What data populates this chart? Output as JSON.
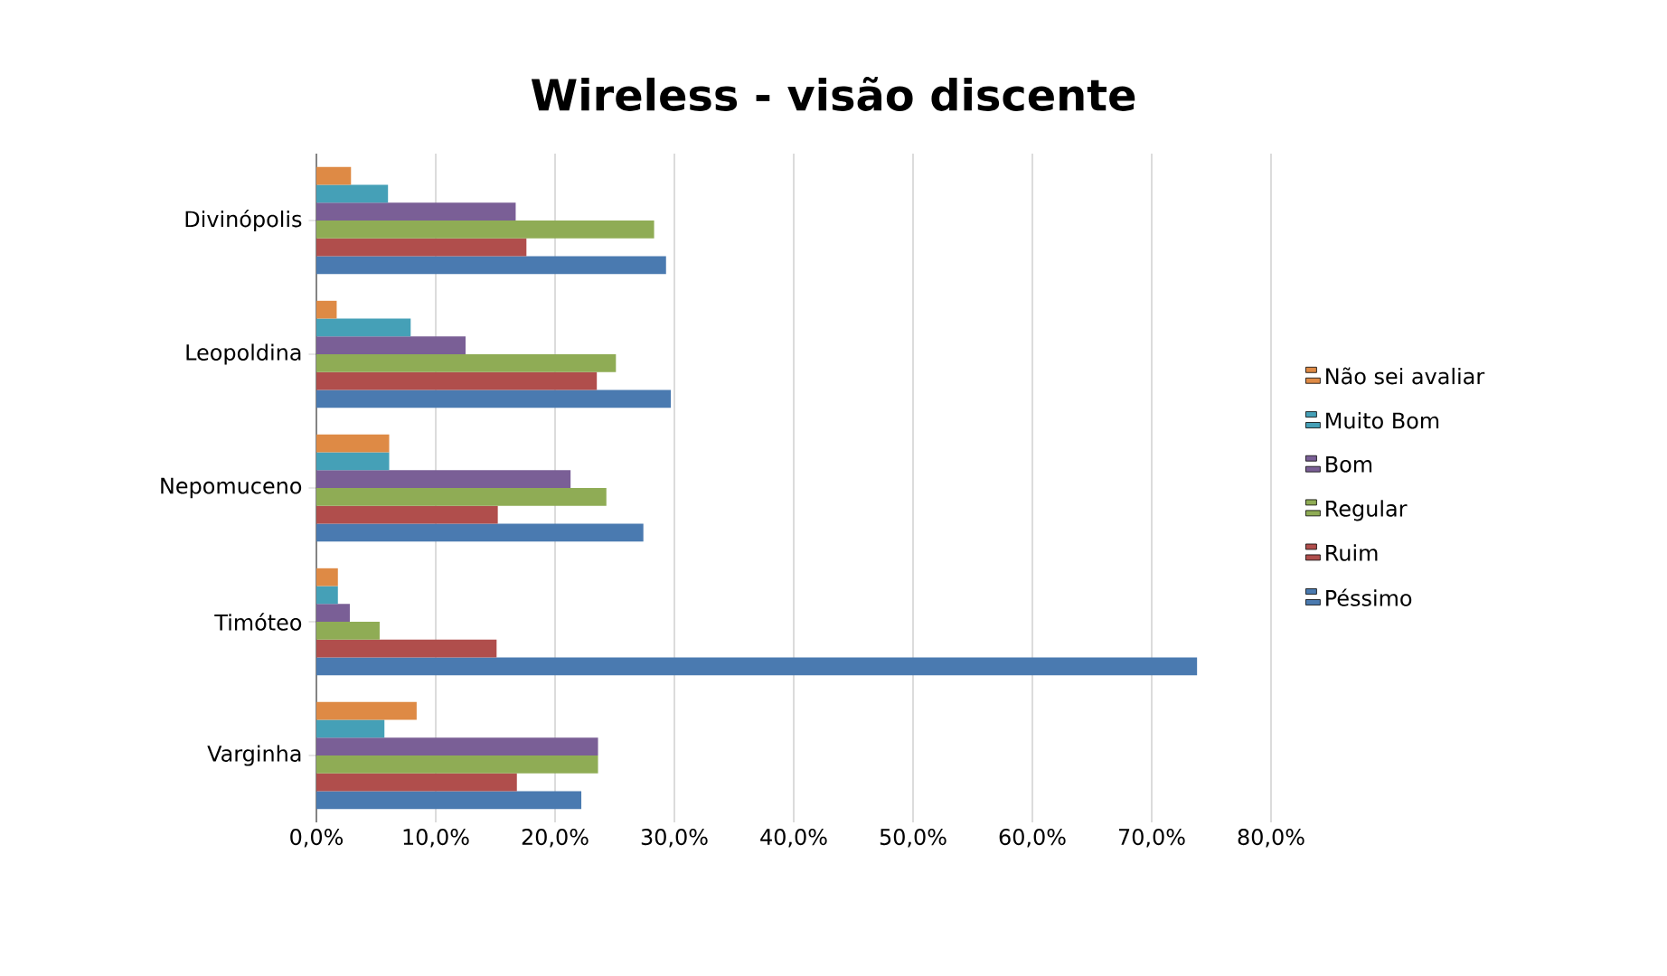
{
  "chart_data": {
    "type": "bar",
    "orientation": "horizontal",
    "title": "Wireless - visão discente",
    "categories": [
      "Divinópolis",
      "Leopoldina",
      "Nepomuceno",
      "Timóteo",
      "Varginha"
    ],
    "series": [
      {
        "name": "Péssimo",
        "color": "#4a7ab0",
        "values": [
          29.3,
          29.7,
          27.4,
          73.8,
          22.2
        ]
      },
      {
        "name": "Ruim",
        "color": "#b04e4c",
        "values": [
          17.6,
          23.5,
          15.2,
          15.1,
          16.8
        ]
      },
      {
        "name": "Regular",
        "color": "#8fac55",
        "values": [
          28.3,
          25.1,
          24.3,
          5.3,
          23.6
        ]
      },
      {
        "name": "Bom",
        "color": "#7a5f96",
        "values": [
          16.7,
          12.5,
          21.3,
          2.8,
          23.6
        ]
      },
      {
        "name": "Muito Bom",
        "color": "#45a0b7",
        "values": [
          6.0,
          7.9,
          6.1,
          1.8,
          5.7
        ]
      },
      {
        "name": "Não sei avaliar",
        "color": "#de8a45",
        "values": [
          2.9,
          1.7,
          6.1,
          1.8,
          8.4
        ]
      }
    ],
    "xlim": [
      0,
      80
    ],
    "xticks": [
      {
        "value": 0,
        "label": "0,0%"
      },
      {
        "value": 10,
        "label": "10,0%"
      },
      {
        "value": 20,
        "label": "20,0%"
      },
      {
        "value": 30,
        "label": "30,0%"
      },
      {
        "value": 40,
        "label": "40,0%"
      },
      {
        "value": 50,
        "label": "50,0%"
      },
      {
        "value": 60,
        "label": "60,0%"
      },
      {
        "value": 70,
        "label": "70,0%"
      },
      {
        "value": 80,
        "label": "80,0%"
      }
    ],
    "grid": "x",
    "legend": "right"
  }
}
